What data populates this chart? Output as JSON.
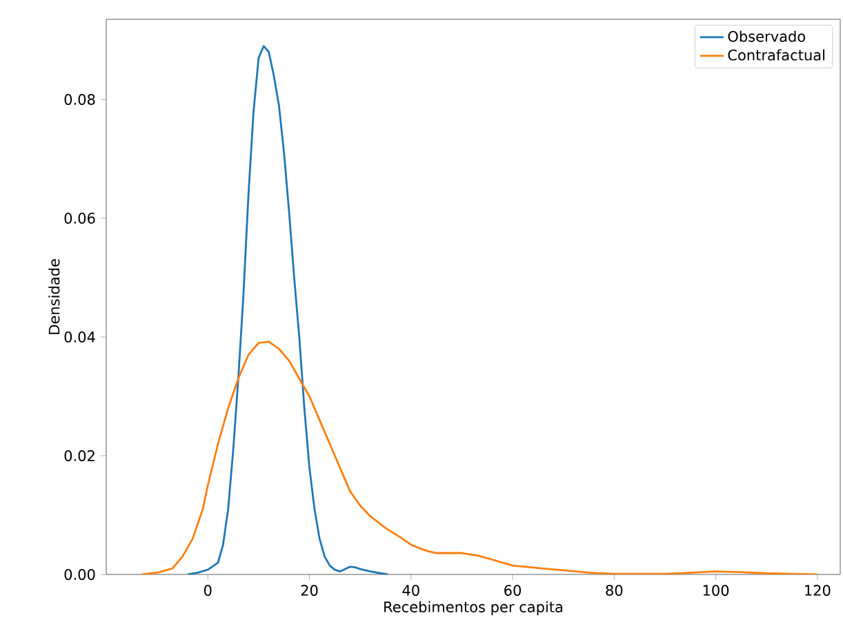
{
  "chart_data": {
    "type": "line",
    "xlabel": "Recebimentos per capita",
    "ylabel": "Densidade",
    "xlim": [
      -20,
      124.5
    ],
    "ylim": [
      0,
      0.0935
    ],
    "xticks": [
      0,
      20,
      40,
      60,
      80,
      100,
      120
    ],
    "yticks": [
      {
        "value": 0,
        "label": "0.00"
      },
      {
        "value": 0.02,
        "label": "0.02"
      },
      {
        "value": 0.04,
        "label": "0.04"
      },
      {
        "value": 0.06,
        "label": "0.06"
      },
      {
        "value": 0.08,
        "label": "0.08"
      }
    ],
    "legend": "top right",
    "grid": false,
    "marker": "none",
    "line_style": "solid",
    "series": [
      {
        "name": "Observado",
        "color": "#1f77b4",
        "x": [
          -4,
          -2,
          0,
          2,
          3,
          4,
          5,
          6,
          7,
          8,
          9,
          10,
          11,
          12,
          13,
          14,
          15,
          16,
          17,
          18,
          19,
          20,
          21,
          22,
          23,
          24,
          25,
          26,
          27,
          28,
          29,
          30,
          32,
          34,
          35.5
        ],
        "values": [
          0,
          0.0003,
          0.0008,
          0.002,
          0.005,
          0.011,
          0.021,
          0.033,
          0.047,
          0.064,
          0.078,
          0.087,
          0.089,
          0.088,
          0.084,
          0.079,
          0.071,
          0.061,
          0.05,
          0.04,
          0.028,
          0.018,
          0.011,
          0.006,
          0.003,
          0.0015,
          0.0008,
          0.0005,
          0.0009,
          0.0013,
          0.0012,
          0.0009,
          0.0005,
          0.0002,
          0
        ]
      },
      {
        "name": "Contrafactual",
        "color": "#ff7f0e",
        "x": [
          -13,
          -10,
          -7,
          -5,
          -3,
          -1,
          0,
          2,
          4,
          6,
          8,
          10,
          12,
          14,
          16,
          18,
          20,
          22,
          24,
          26,
          28,
          30,
          32,
          35,
          38,
          40,
          43,
          45,
          50,
          53,
          56,
          60,
          66,
          70,
          75,
          80,
          85,
          90,
          95,
          100,
          105,
          110,
          115,
          120
        ],
        "values": [
          0,
          0.0003,
          0.001,
          0.003,
          0.006,
          0.011,
          0.015,
          0.022,
          0.028,
          0.033,
          0.037,
          0.039,
          0.0392,
          0.038,
          0.036,
          0.033,
          0.03,
          0.026,
          0.022,
          0.018,
          0.014,
          0.0116,
          0.0098,
          0.0078,
          0.0062,
          0.005,
          0.004,
          0.0036,
          0.0036,
          0.0032,
          0.0025,
          0.0015,
          0.001,
          0.0007,
          0.0003,
          0.0001,
          0.0001,
          0.0001,
          0.0003,
          0.0005,
          0.0004,
          0.0002,
          0.0001,
          0
        ]
      }
    ]
  }
}
